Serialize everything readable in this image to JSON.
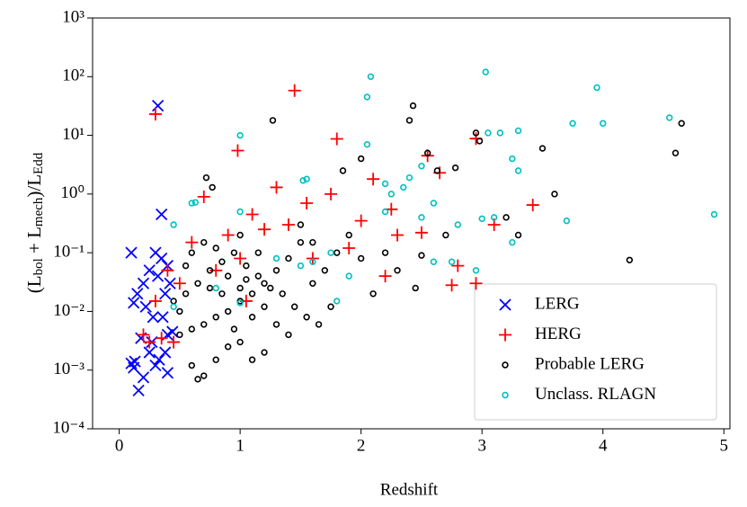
{
  "chart_data": {
    "type": "scatter",
    "xlabel": "Redshift",
    "ylabel": [
      "(L",
      "bol",
      " + L",
      "mech",
      ")/L",
      "Edd"
    ],
    "xlim": [
      -0.22,
      5.05
    ],
    "xticks": [
      0,
      1,
      2,
      3,
      4,
      5
    ],
    "ylim": [
      0.0001,
      1000
    ],
    "log_y": true,
    "yticks": [
      {
        "value": 0.0001,
        "label": "10⁻⁴"
      },
      {
        "value": 0.001,
        "label": "10⁻³"
      },
      {
        "value": 0.01,
        "label": "10⁻²"
      },
      {
        "value": 0.1,
        "label": "10⁻¹"
      },
      {
        "value": 1,
        "label": "10⁰"
      },
      {
        "value": 10,
        "label": "10¹"
      },
      {
        "value": 100,
        "label": "10²"
      },
      {
        "value": 1000,
        "label": "10³"
      }
    ],
    "legend": "lower right",
    "series": [
      {
        "name": "LERG",
        "color": "#0000ff",
        "marker": "x",
        "x": [
          0.32,
          0.35,
          0.1,
          0.3,
          0.35,
          0.4,
          0.12,
          0.2,
          0.25,
          0.32,
          0.38,
          0.42,
          0.15,
          0.22,
          0.28,
          0.36,
          0.4,
          0.1,
          0.12,
          0.18,
          0.25,
          0.3,
          0.38,
          0.16,
          0.2,
          0.33,
          0.4,
          0.13,
          0.27,
          0.44
        ],
        "values": [
          32,
          0.45,
          0.1,
          0.1,
          0.08,
          0.06,
          0.014,
          0.03,
          0.05,
          0.04,
          0.02,
          0.03,
          0.02,
          0.012,
          0.008,
          0.008,
          0.004,
          0.0013,
          0.0011,
          0.0035,
          0.002,
          0.0012,
          0.002,
          0.00045,
          0.00075,
          0.0015,
          0.0009,
          0.0014,
          0.003,
          0.0045
        ]
      },
      {
        "name": "HERG",
        "color": "#ff0000",
        "marker": "+",
        "x": [
          0.3,
          1.45,
          0.98,
          1.8,
          2.95,
          2.55,
          0.7,
          1.3,
          1.1,
          1.55,
          1.75,
          2.1,
          2.25,
          2.65,
          3.1,
          3.42,
          2.0,
          1.2,
          0.6,
          0.9,
          1.4,
          1.9,
          2.3,
          0.4,
          0.5,
          0.3,
          0.2,
          0.45,
          0.8,
          1.0,
          1.6,
          2.2,
          2.8,
          2.75,
          0.35,
          0.25,
          1.05,
          2.5,
          2.95
        ],
        "values": [
          23,
          58,
          5.5,
          8.7,
          8.8,
          4.5,
          0.9,
          1.3,
          0.45,
          0.7,
          1.0,
          1.8,
          0.55,
          2.3,
          0.3,
          0.65,
          0.35,
          0.25,
          0.15,
          0.2,
          0.3,
          0.12,
          0.2,
          0.05,
          0.03,
          0.015,
          0.004,
          0.003,
          0.05,
          0.08,
          0.08,
          0.04,
          0.06,
          0.028,
          0.0035,
          0.003,
          0.015,
          0.22,
          0.03
        ]
      },
      {
        "name": "Probable LERG",
        "color": "#000000",
        "marker": "o",
        "x": [
          1.27,
          2.43,
          2.4,
          2.55,
          2.95,
          2.98,
          3.5,
          4.65,
          4.6,
          1.85,
          2.0,
          0.72,
          0.77,
          2.63,
          2.78,
          3.6,
          4.22,
          3.2,
          3.3,
          2.7,
          2.5,
          2.3,
          2.1,
          2.45,
          1.7,
          1.8,
          1.9,
          1.5,
          1.6,
          1.4,
          1.3,
          1.2,
          1.1,
          1.0,
          0.9,
          0.8,
          0.7,
          0.6,
          0.5,
          0.55,
          0.65,
          0.75,
          0.85,
          0.95,
          1.05,
          1.15,
          1.25,
          1.35,
          1.45,
          1.55,
          1.65,
          1.2,
          1.1,
          0.9,
          0.7,
          0.65,
          0.6,
          0.8,
          1.0,
          0.5,
          0.55,
          0.6,
          0.7,
          0.8,
          0.9,
          1.0,
          1.1,
          1.2,
          1.3,
          1.4,
          1.5,
          0.95,
          1.05,
          0.85,
          0.75,
          1.15,
          1.6,
          1.75,
          2.0,
          2.2,
          1.0,
          0.45
        ],
        "values": [
          18,
          32,
          18,
          5,
          11,
          8,
          6,
          16,
          5,
          2.5,
          4,
          1.9,
          1.3,
          2.5,
          2.8,
          1.0,
          0.075,
          0.4,
          0.2,
          0.2,
          0.09,
          0.05,
          0.02,
          0.025,
          0.05,
          0.1,
          0.2,
          0.3,
          0.15,
          0.08,
          0.05,
          0.03,
          0.02,
          0.015,
          0.01,
          0.008,
          0.006,
          0.005,
          0.004,
          0.02,
          0.03,
          0.05,
          0.07,
          0.1,
          0.06,
          0.04,
          0.025,
          0.02,
          0.012,
          0.008,
          0.006,
          0.002,
          0.0015,
          0.0025,
          0.0008,
          0.0007,
          0.0012,
          0.0015,
          0.003,
          0.01,
          0.06,
          0.1,
          0.15,
          0.12,
          0.04,
          0.025,
          0.008,
          0.012,
          0.006,
          0.004,
          0.15,
          0.005,
          0.035,
          0.02,
          0.025,
          0.1,
          0.03,
          0.012,
          0.08,
          0.1,
          0.2,
          0.015
        ]
      },
      {
        "name": "Unclass. RLAGN",
        "color": "#00bfbf",
        "marker": "o",
        "x": [
          1.0,
          2.05,
          2.08,
          3.03,
          3.75,
          4.0,
          3.95,
          4.55,
          4.92,
          2.05,
          3.05,
          3.15,
          3.3,
          3.25,
          3.3,
          2.5,
          2.2,
          2.25,
          2.35,
          2.4,
          1.52,
          1.55,
          0.6,
          0.63,
          1.0,
          0.45,
          3.7,
          3.0,
          2.8,
          3.1,
          2.5,
          2.6,
          3.25,
          2.75,
          2.95,
          2.6,
          1.75,
          1.9,
          1.6,
          1.5,
          1.3,
          2.2,
          1.8,
          0.8,
          1.0,
          0.45
        ],
        "values": [
          10,
          45,
          100,
          120,
          16,
          16,
          65,
          20,
          0.45,
          7,
          11,
          11,
          12,
          4,
          2.5,
          3,
          1.5,
          1,
          1.3,
          1.9,
          1.7,
          1.8,
          0.7,
          0.72,
          0.5,
          0.3,
          0.35,
          0.38,
          0.3,
          0.4,
          0.4,
          0.7,
          0.15,
          0.07,
          0.05,
          0.07,
          0.1,
          0.04,
          0.07,
          0.06,
          0.08,
          0.5,
          0.015,
          0.025,
          0.014,
          0.012
        ]
      }
    ]
  }
}
